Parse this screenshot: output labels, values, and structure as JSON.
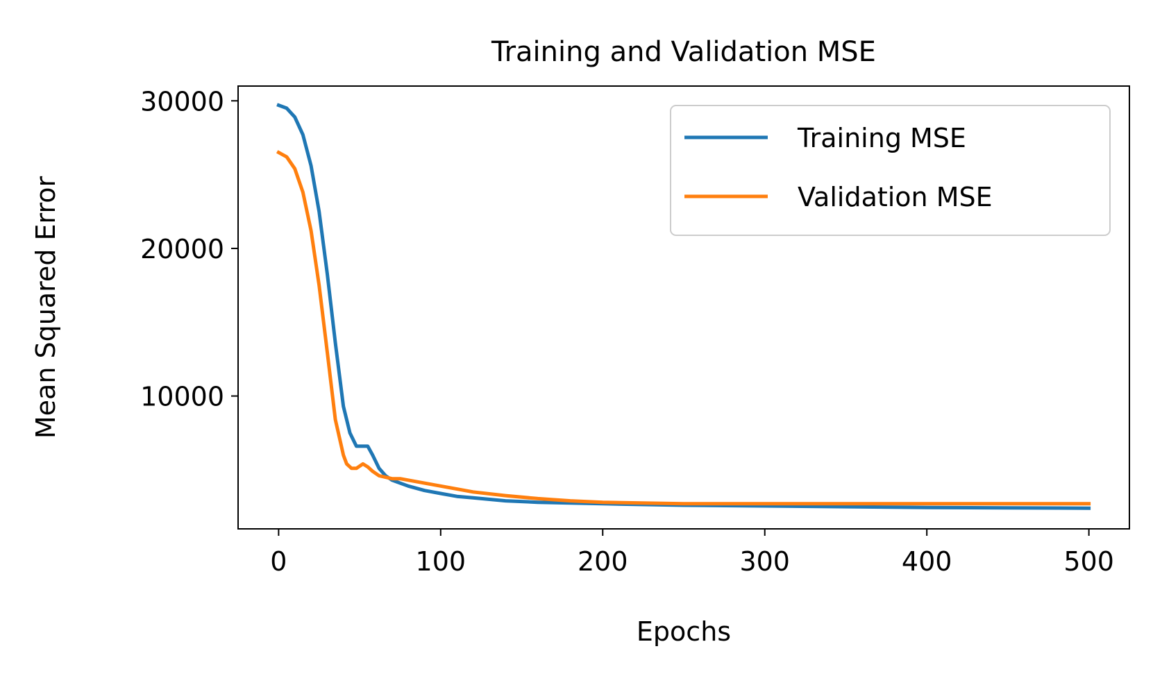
{
  "chart_data": {
    "type": "line",
    "title": "Training and Validation MSE",
    "xlabel": "Epochs",
    "ylabel": "Mean Squared Error",
    "xlim": [
      -25,
      525
    ],
    "ylim": [
      1000,
      31000
    ],
    "xticks": [
      0,
      100,
      200,
      300,
      400,
      500
    ],
    "xtick_labels": [
      "0",
      "100",
      "200",
      "300",
      "400",
      "500"
    ],
    "yticks": [
      10000,
      20000,
      30000
    ],
    "ytick_labels": [
      "10000",
      "20000",
      "30000"
    ],
    "grid": false,
    "legend_position": "top-right",
    "series": [
      {
        "name": "Training MSE",
        "color": "#1f77b4",
        "x": [
          0,
          5,
          10,
          15,
          20,
          25,
          30,
          35,
          40,
          44,
          48,
          52,
          55,
          58,
          62,
          66,
          70,
          80,
          90,
          100,
          110,
          120,
          140,
          160,
          180,
          200,
          250,
          300,
          350,
          400,
          450,
          500
        ],
        "y": [
          29700,
          29500,
          28900,
          27700,
          25600,
          22500,
          18300,
          13600,
          9300,
          7500,
          6600,
          6600,
          6600,
          6000,
          5100,
          4600,
          4300,
          3900,
          3600,
          3400,
          3200,
          3100,
          2900,
          2800,
          2750,
          2700,
          2600,
          2550,
          2500,
          2450,
          2420,
          2400
        ]
      },
      {
        "name": "Validation MSE",
        "color": "#ff7f0e",
        "x": [
          0,
          5,
          10,
          15,
          20,
          25,
          30,
          35,
          40,
          42,
          45,
          48,
          52,
          55,
          58,
          62,
          66,
          70,
          75,
          80,
          90,
          100,
          110,
          120,
          140,
          160,
          180,
          200,
          250,
          300,
          350,
          400,
          450,
          500
        ],
        "y": [
          26500,
          26200,
          25400,
          23800,
          21200,
          17500,
          13000,
          8400,
          6000,
          5400,
          5100,
          5100,
          5400,
          5200,
          4900,
          4600,
          4500,
          4400,
          4400,
          4300,
          4100,
          3900,
          3700,
          3500,
          3250,
          3050,
          2900,
          2800,
          2700,
          2700,
          2700,
          2700,
          2700,
          2700
        ]
      }
    ]
  }
}
